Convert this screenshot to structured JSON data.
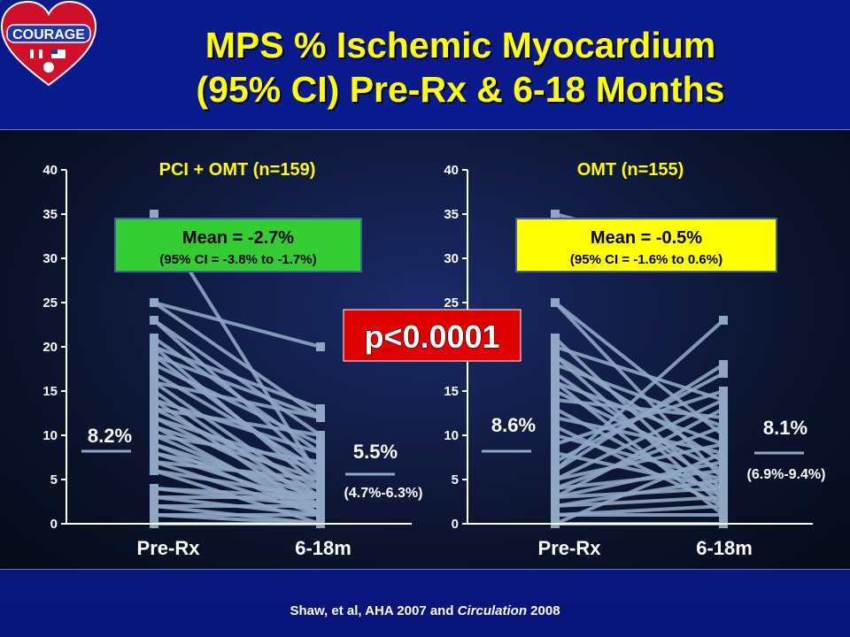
{
  "logo": {
    "text": "COURAGE"
  },
  "title": {
    "line1": "MPS % Ischemic Myocardium",
    "line2": "(95% CI) Pre-Rx & 6-18 Months"
  },
  "p_value": "p<0.0001",
  "citation": {
    "prefix": "Shaw, et al, AHA 2007 and ",
    "journal": "Circulation",
    "suffix": " 2008"
  },
  "colors": {
    "line": "#8fa6c4",
    "mean_pci_box": "#33cc33",
    "mean_omt_box": "#ffff00",
    "p_box": "#e00000",
    "title": "#ffff00"
  },
  "chart_data": [
    {
      "type": "line",
      "title": "PCI + OMT (n=159)",
      "categories": [
        "Pre-Rx",
        "6-18m"
      ],
      "ylim": [
        0,
        40
      ],
      "yticks": [
        0,
        5,
        10,
        15,
        20,
        25,
        30,
        35,
        40
      ],
      "pre_mean_label": "8.2%",
      "post_mean_label": "5.5%",
      "post_ci_label": "(4.7%-6.3%)",
      "pre_mean": 8.2,
      "post_mean": 5.5,
      "mean_box": {
        "line1": "Mean = -2.7%",
        "line2": "(95% CI = -3.8% to -1.7%)"
      },
      "pairs": [
        [
          35,
          5
        ],
        [
          25,
          20
        ],
        [
          25,
          12
        ],
        [
          23,
          10
        ],
        [
          23,
          6
        ],
        [
          21,
          8
        ],
        [
          20,
          13
        ],
        [
          20,
          4
        ],
        [
          19,
          12
        ],
        [
          19,
          5
        ],
        [
          18,
          9
        ],
        [
          17,
          6
        ],
        [
          16,
          3
        ],
        [
          16,
          12
        ],
        [
          15,
          2
        ],
        [
          14,
          8
        ],
        [
          14,
          1
        ],
        [
          13,
          4
        ],
        [
          13,
          10
        ],
        [
          12,
          3
        ],
        [
          12,
          6
        ],
        [
          11,
          1
        ],
        [
          11,
          5
        ],
        [
          10,
          2
        ],
        [
          10,
          7
        ],
        [
          9,
          3
        ],
        [
          9,
          1
        ],
        [
          8,
          4
        ],
        [
          8,
          2
        ],
        [
          7,
          5
        ],
        [
          7,
          1
        ],
        [
          6,
          3
        ],
        [
          6,
          0
        ],
        [
          4,
          3
        ],
        [
          4,
          2
        ],
        [
          3,
          3
        ],
        [
          3,
          1
        ],
        [
          2,
          2
        ],
        [
          2,
          0
        ],
        [
          1,
          1
        ],
        [
          1,
          0
        ],
        [
          0,
          0
        ]
      ]
    },
    {
      "type": "line",
      "title": "OMT (n=155)",
      "categories": [
        "Pre-Rx",
        "6-18m"
      ],
      "ylim": [
        0,
        40
      ],
      "yticks": [
        0,
        5,
        10,
        15,
        20,
        25,
        30,
        35,
        40
      ],
      "pre_mean_label": "8.6%",
      "post_mean_label": "8.1%",
      "post_ci_label": "(6.9%-9.4%)",
      "pre_mean": 8.6,
      "post_mean": 8.1,
      "mean_box": {
        "line1": "Mean = -0.5%",
        "line2": "(95% CI = -1.6% to 0.6%)"
      },
      "pairs": [
        [
          35,
          30
        ],
        [
          25,
          5
        ],
        [
          25,
          10
        ],
        [
          21,
          3
        ],
        [
          20,
          14
        ],
        [
          19,
          7
        ],
        [
          19,
          2
        ],
        [
          18,
          11
        ],
        [
          17,
          4
        ],
        [
          16,
          9
        ],
        [
          16,
          1
        ],
        [
          15,
          6
        ],
        [
          14,
          12
        ],
        [
          13,
          3
        ],
        [
          12,
          8
        ],
        [
          11,
          2
        ],
        [
          10,
          5
        ],
        [
          9,
          15
        ],
        [
          8,
          4
        ],
        [
          7,
          17
        ],
        [
          6,
          23
        ],
        [
          6,
          18
        ],
        [
          5,
          14
        ],
        [
          5,
          9
        ],
        [
          4,
          11
        ],
        [
          4,
          6
        ],
        [
          3,
          13
        ],
        [
          3,
          7
        ],
        [
          3,
          4
        ],
        [
          2,
          5
        ],
        [
          2,
          3
        ],
        [
          1,
          2
        ],
        [
          1,
          1
        ],
        [
          0,
          8
        ],
        [
          0,
          0
        ]
      ]
    }
  ]
}
